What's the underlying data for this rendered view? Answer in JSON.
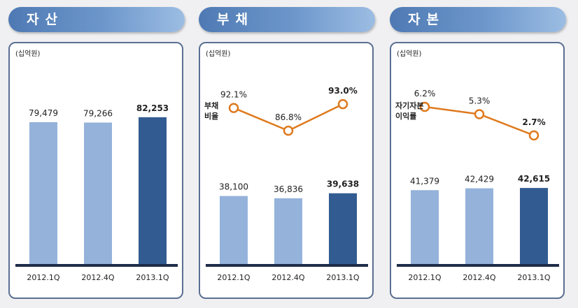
{
  "panels": [
    {
      "key": "assets",
      "header": "자산",
      "unit": "(십억원)"
    },
    {
      "key": "liabilities",
      "header": "부채",
      "unit": "(십억원)"
    },
    {
      "key": "equity",
      "header": "자본",
      "unit": "(십억원)"
    }
  ],
  "colors": {
    "bar_light": "#94b2da",
    "bar_dark": "#325c91",
    "line": "#de7a1e",
    "axis": "#1e2c48"
  },
  "chart_data": [
    {
      "type": "bar",
      "categories": [
        "2012.1Q",
        "2012.4Q",
        "2013.1Q"
      ],
      "values": [
        79479,
        79266,
        82253
      ],
      "value_labels": [
        "79,479",
        "79,266",
        "82,253"
      ],
      "title": "자산",
      "ylabel": "(십억원)",
      "ylim": [
        0,
        90000
      ]
    },
    {
      "type": "bar",
      "categories": [
        "2012.1Q",
        "2012.4Q",
        "2013.1Q"
      ],
      "values": [
        38100,
        36836,
        39638
      ],
      "value_labels": [
        "38,100",
        "36,836",
        "39,638"
      ],
      "title": "부채",
      "ylabel": "(십억원)",
      "ylim": [
        0,
        90000
      ],
      "line_series": {
        "name": "부채 비율",
        "name_lines": [
          "부채",
          "비율"
        ],
        "values": [
          92.1,
          86.8,
          93.0
        ],
        "labels": [
          "92.1%",
          "86.8%",
          "93.0%"
        ]
      }
    },
    {
      "type": "bar",
      "categories": [
        "2012.1Q",
        "2012.4Q",
        "2013.1Q"
      ],
      "values": [
        41379,
        42429,
        42615
      ],
      "value_labels": [
        "41,379",
        "42,429",
        "42,615"
      ],
      "title": "자본",
      "ylabel": "(십억원)",
      "ylim": [
        0,
        90000
      ],
      "line_series": {
        "name": "자기자본 이익률",
        "name_lines": [
          "자기자본",
          "이익률"
        ],
        "values": [
          6.2,
          5.3,
          2.7
        ],
        "labels": [
          "6.2%",
          "5.3%",
          "2.7%"
        ]
      }
    }
  ]
}
